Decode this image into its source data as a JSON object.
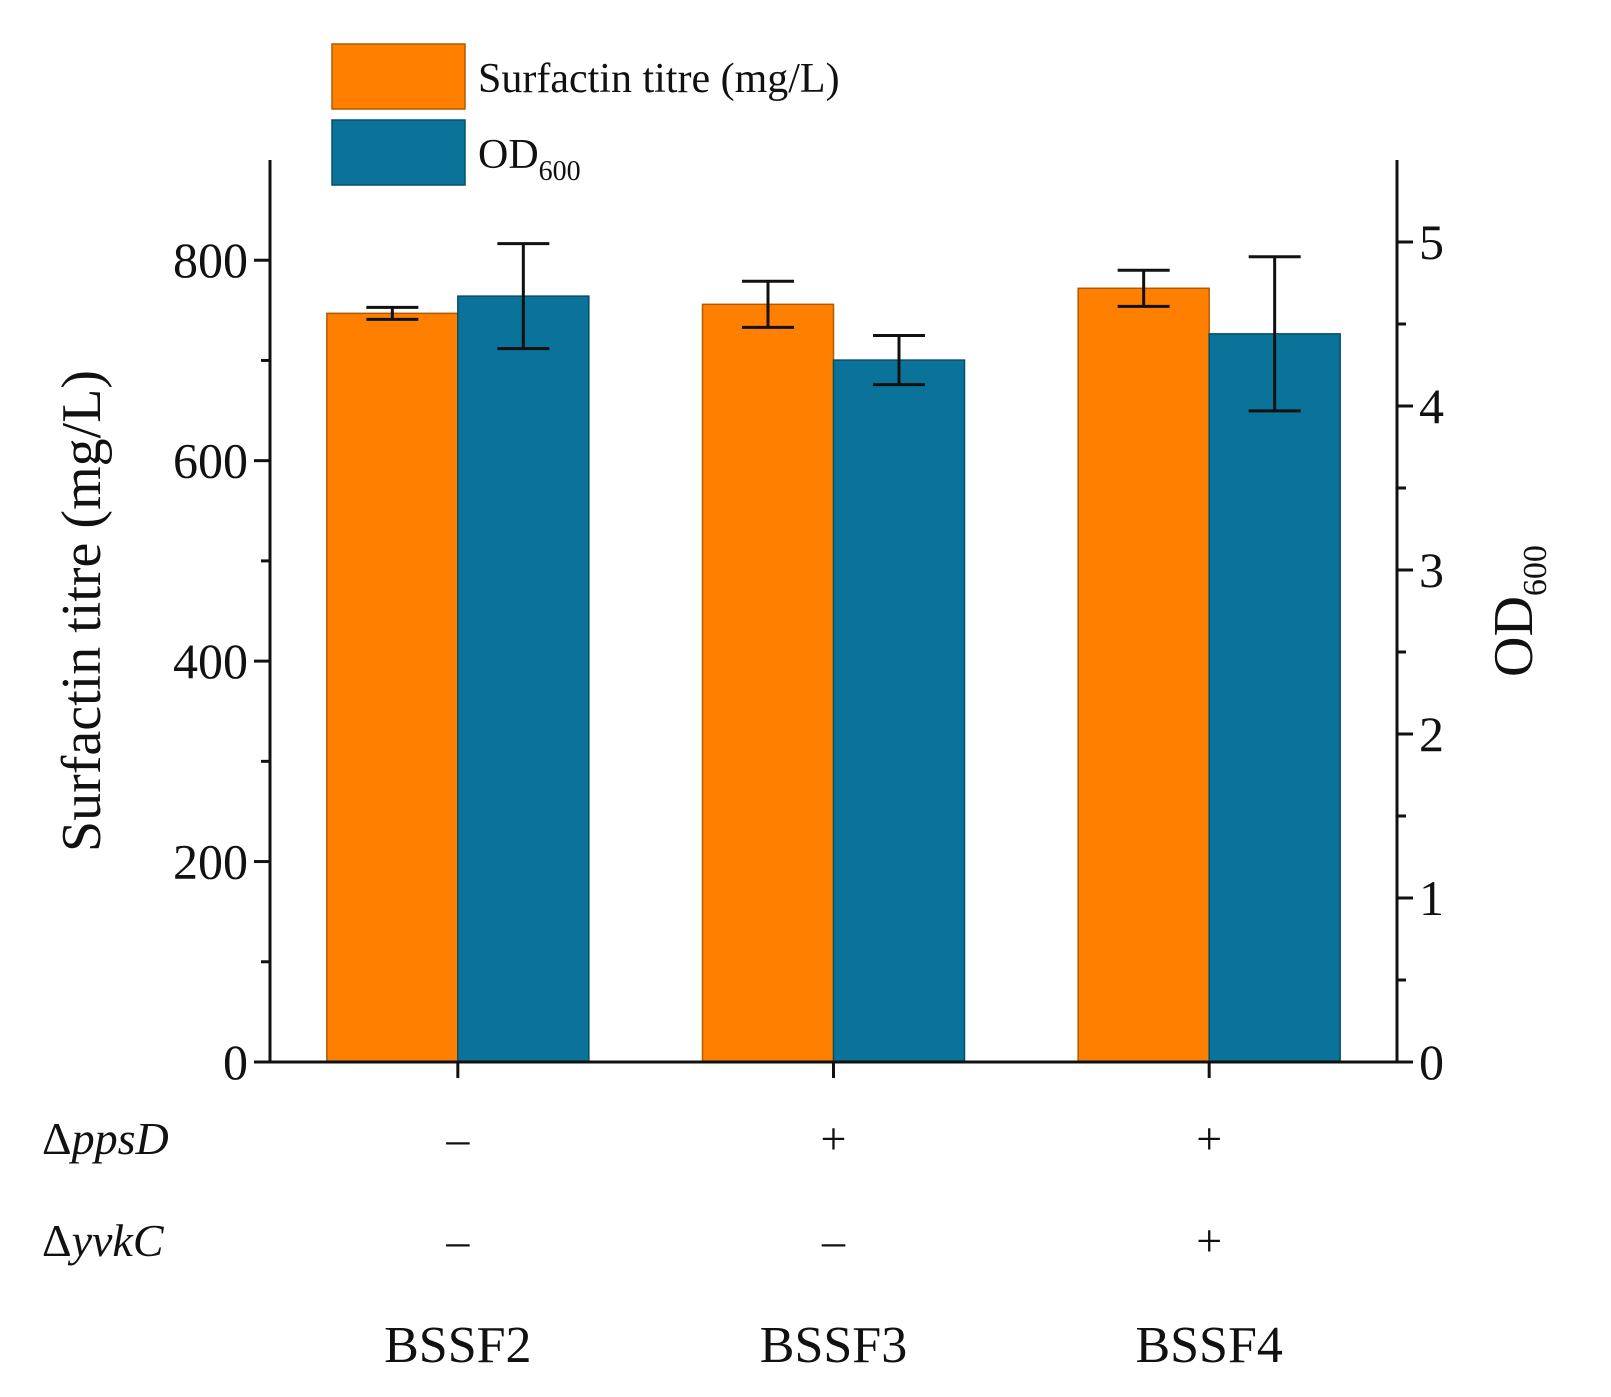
{
  "chart_data": {
    "type": "bar",
    "categories": [
      "BSSF2",
      "BSSF3",
      "BSSF4"
    ],
    "series": [
      {
        "name": "Surfactin titre (mg/L)",
        "axis": "left",
        "color": "#FF8000",
        "values": [
          747,
          756,
          772
        ],
        "errors": [
          6,
          23,
          18
        ]
      },
      {
        "name": "OD600",
        "name_main": "OD",
        "name_sub": "600",
        "axis": "right",
        "color": "#0B7299",
        "values": [
          4.67,
          4.28,
          4.44
        ],
        "errors": [
          0.32,
          0.15,
          0.47
        ]
      }
    ],
    "ylabel": "Surfactin titre (mg/L)",
    "ylim": [
      0,
      900
    ],
    "yticks": [
      "0",
      "200",
      "400",
      "600",
      "800"
    ],
    "ylabel_right_main": "OD",
    "ylabel_right_sub": "600",
    "ylim_right": [
      0,
      5.5
    ],
    "yticks_right": [
      "0",
      "1",
      "2",
      "3",
      "4",
      "5"
    ],
    "genotype_rows": [
      {
        "label_prefix": "Δ",
        "label_gene": "ppsD",
        "signs": [
          "–",
          "+",
          "+"
        ]
      },
      {
        "label_prefix": "Δ",
        "label_gene": "yvkC",
        "signs": [
          "–",
          "–",
          "+"
        ]
      }
    ],
    "legend_position": "top-left",
    "grid": false
  }
}
